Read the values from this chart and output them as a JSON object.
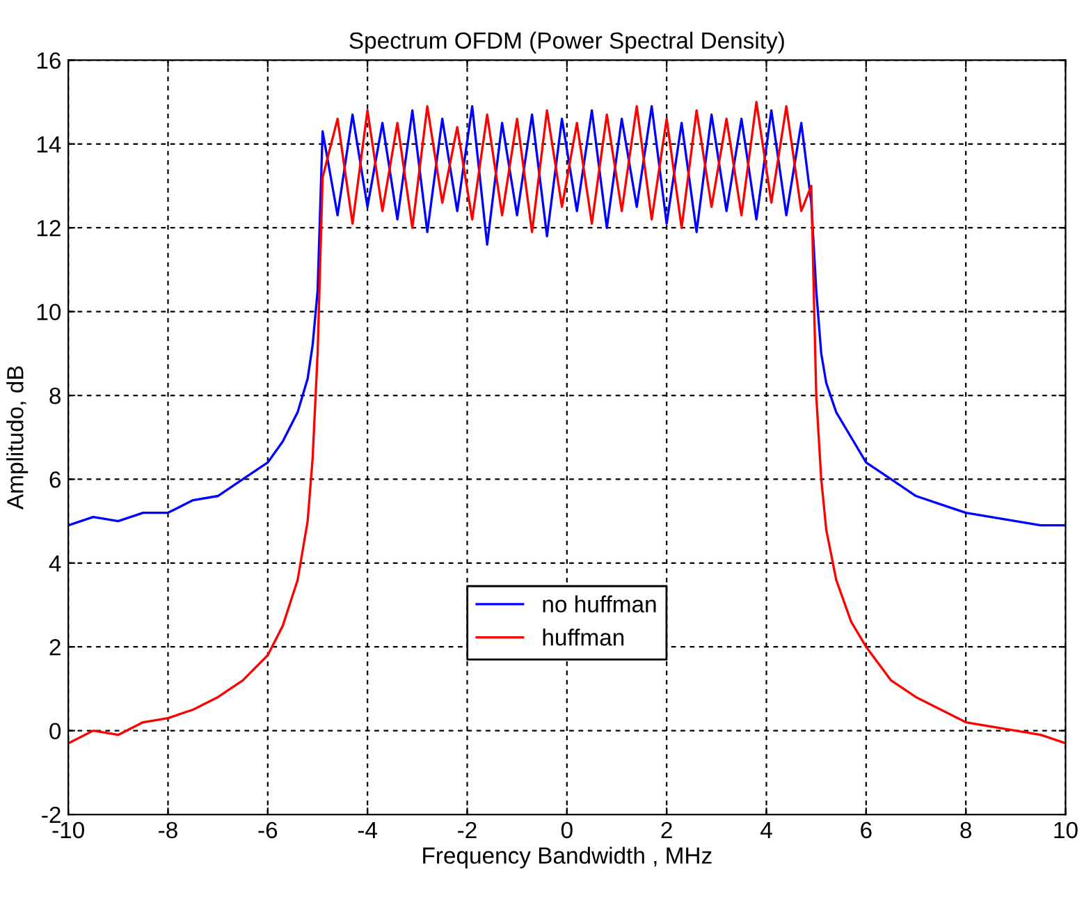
{
  "chart_data": {
    "type": "line",
    "title": "Spectrum OFDM (Power Spectral Density)",
    "xlabel": "Frequency Bandwidth , MHz",
    "ylabel": "Amplitudo, dB",
    "x": [
      -10,
      -9.5,
      -9,
      -8.5,
      -8,
      -7.5,
      -7,
      -6.5,
      -6,
      -5.7,
      -5.4,
      -5.2,
      -5.1,
      -5.0,
      -4.9,
      -4.6,
      -4.3,
      -4.0,
      -3.7,
      -3.4,
      -3.1,
      -2.8,
      -2.5,
      -2.2,
      -1.9,
      -1.6,
      -1.3,
      -1.0,
      -0.7,
      -0.4,
      -0.1,
      0.2,
      0.5,
      0.8,
      1.1,
      1.4,
      1.7,
      2.0,
      2.3,
      2.6,
      2.9,
      3.2,
      3.5,
      3.8,
      4.1,
      4.4,
      4.7,
      4.9,
      5.0,
      5.1,
      5.2,
      5.4,
      5.7,
      6,
      6.5,
      7,
      7.5,
      8,
      8.5,
      9,
      9.5,
      10
    ],
    "series": [
      {
        "name": "no huffman",
        "color": "#0000ff",
        "values": [
          4.9,
          5.1,
          5.0,
          5.2,
          5.2,
          5.5,
          5.6,
          6.0,
          6.4,
          6.9,
          7.6,
          8.4,
          9.2,
          10.5,
          14.3,
          12.3,
          14.7,
          12.5,
          14.5,
          12.2,
          14.8,
          11.9,
          14.6,
          12.4,
          14.9,
          11.6,
          14.5,
          12.3,
          14.7,
          11.8,
          14.6,
          12.4,
          14.8,
          12.0,
          14.6,
          12.5,
          14.9,
          12.1,
          14.5,
          11.9,
          14.7,
          12.4,
          14.6,
          12.2,
          14.8,
          12.3,
          14.5,
          12.6,
          10.5,
          9.0,
          8.3,
          7.6,
          7.0,
          6.4,
          6.0,
          5.6,
          5.4,
          5.2,
          5.1,
          5.0,
          4.9,
          4.9
        ]
      },
      {
        "name": "huffman",
        "color": "#ff0000",
        "values": [
          -0.3,
          0.0,
          -0.1,
          0.2,
          0.3,
          0.5,
          0.8,
          1.2,
          1.8,
          2.5,
          3.6,
          5.0,
          6.5,
          9.0,
          13.2,
          14.6,
          12.1,
          14.8,
          12.4,
          14.5,
          12.0,
          14.9,
          12.6,
          14.4,
          12.2,
          14.7,
          12.3,
          14.6,
          11.9,
          14.8,
          12.5,
          14.5,
          12.1,
          14.7,
          12.4,
          14.9,
          12.2,
          14.6,
          12.0,
          14.8,
          12.5,
          14.6,
          12.3,
          15.0,
          12.6,
          14.9,
          12.4,
          13.0,
          8.0,
          6.0,
          4.8,
          3.6,
          2.6,
          2.0,
          1.2,
          0.8,
          0.5,
          0.2,
          0.1,
          0.0,
          -0.1,
          -0.3
        ]
      }
    ],
    "xlim": [
      -10,
      10
    ],
    "xticks": [
      -10,
      -8,
      -6,
      -4,
      -2,
      0,
      2,
      4,
      6,
      8,
      10
    ],
    "ylim": [
      -2,
      16
    ],
    "yticks": [
      -2,
      0,
      2,
      4,
      6,
      8,
      10,
      12,
      14,
      16
    ],
    "grid": true,
    "legend": "bottom",
    "line_style": "solid"
  }
}
